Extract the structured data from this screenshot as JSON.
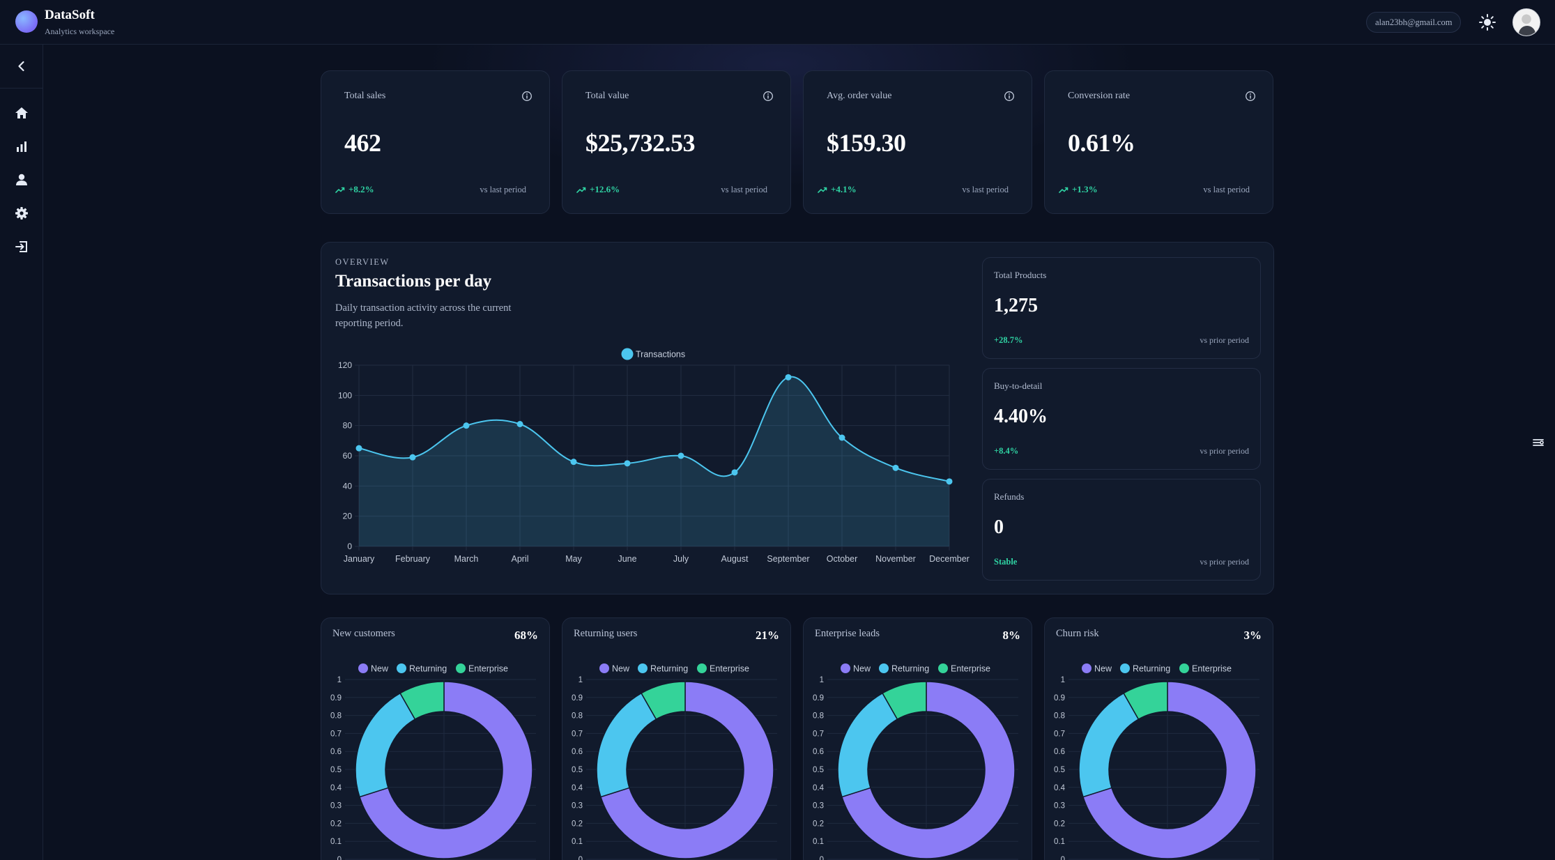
{
  "header": {
    "brand_name": "DataSoft",
    "brand_subtitle": "Analytics workspace",
    "user_email": "alan23bh@gmail.com"
  },
  "sidebar": {
    "items": [
      {
        "icon": "home-icon"
      },
      {
        "icon": "bar-chart-icon"
      },
      {
        "icon": "user-icon"
      },
      {
        "icon": "settings-icon"
      },
      {
        "icon": "logout-icon"
      }
    ]
  },
  "kpis": [
    {
      "label": "Total sales",
      "value": "462",
      "change": "+8.2%",
      "vs": "vs last period"
    },
    {
      "label": "Total value",
      "value": "$25,732.53",
      "change": "+12.6%",
      "vs": "vs last period"
    },
    {
      "label": "Avg. order value",
      "value": "$159.30",
      "change": "+4.1%",
      "vs": "vs last period"
    },
    {
      "label": "Conversion rate",
      "value": "0.61%",
      "change": "+1.3%",
      "vs": "vs last period"
    }
  ],
  "overview": {
    "eyebrow": "OVERVIEW",
    "title": "Transactions per day",
    "description": "Daily transaction activity across the current reporting period."
  },
  "side_stats": [
    {
      "label": "Total Products",
      "value": "1,275",
      "change": "+28.7%",
      "vs": "vs prior period"
    },
    {
      "label": "Buy-to-detail",
      "value": "4.40%",
      "change": "+8.4%",
      "vs": "vs prior period"
    },
    {
      "label": "Refunds",
      "value": "0",
      "change": "Stable",
      "vs": "vs prior period"
    }
  ],
  "donut_cards": [
    {
      "title": "New customers",
      "percent": "68%"
    },
    {
      "title": "Returning users",
      "percent": "21%"
    },
    {
      "title": "Enterprise leads",
      "percent": "8%"
    },
    {
      "title": "Churn risk",
      "percent": "3%"
    }
  ],
  "colors": {
    "accent_line": "#4cc6ef",
    "positive": "#2fd3a3",
    "donut_new": "#8b7cf6",
    "donut_returning": "#4cc6ef",
    "donut_enterprise": "#34d399"
  },
  "chart_data": [
    {
      "type": "area",
      "title": "",
      "xlabel": "",
      "ylabel": "",
      "legend": "top-center",
      "grid": true,
      "categories": [
        "January",
        "February",
        "March",
        "April",
        "May",
        "June",
        "July",
        "August",
        "September",
        "October",
        "November",
        "December"
      ],
      "series": [
        {
          "name": "Transactions",
          "values": [
            65,
            59,
            80,
            81,
            56,
            55,
            60,
            49,
            112,
            72,
            52,
            43
          ]
        }
      ],
      "ylim": [
        0,
        120
      ],
      "yticks": [
        0,
        20,
        40,
        60,
        80,
        100,
        120
      ]
    },
    {
      "type": "pie",
      "style": "doughnut",
      "legend": "top-center",
      "labels": [
        "New",
        "Returning",
        "Enterprise"
      ],
      "values": [
        68,
        21,
        8
      ],
      "yticks": [
        0,
        0.1,
        0.2,
        0.3,
        0.4,
        0.5,
        0.6,
        0.7,
        0.8,
        0.9,
        1
      ]
    }
  ]
}
